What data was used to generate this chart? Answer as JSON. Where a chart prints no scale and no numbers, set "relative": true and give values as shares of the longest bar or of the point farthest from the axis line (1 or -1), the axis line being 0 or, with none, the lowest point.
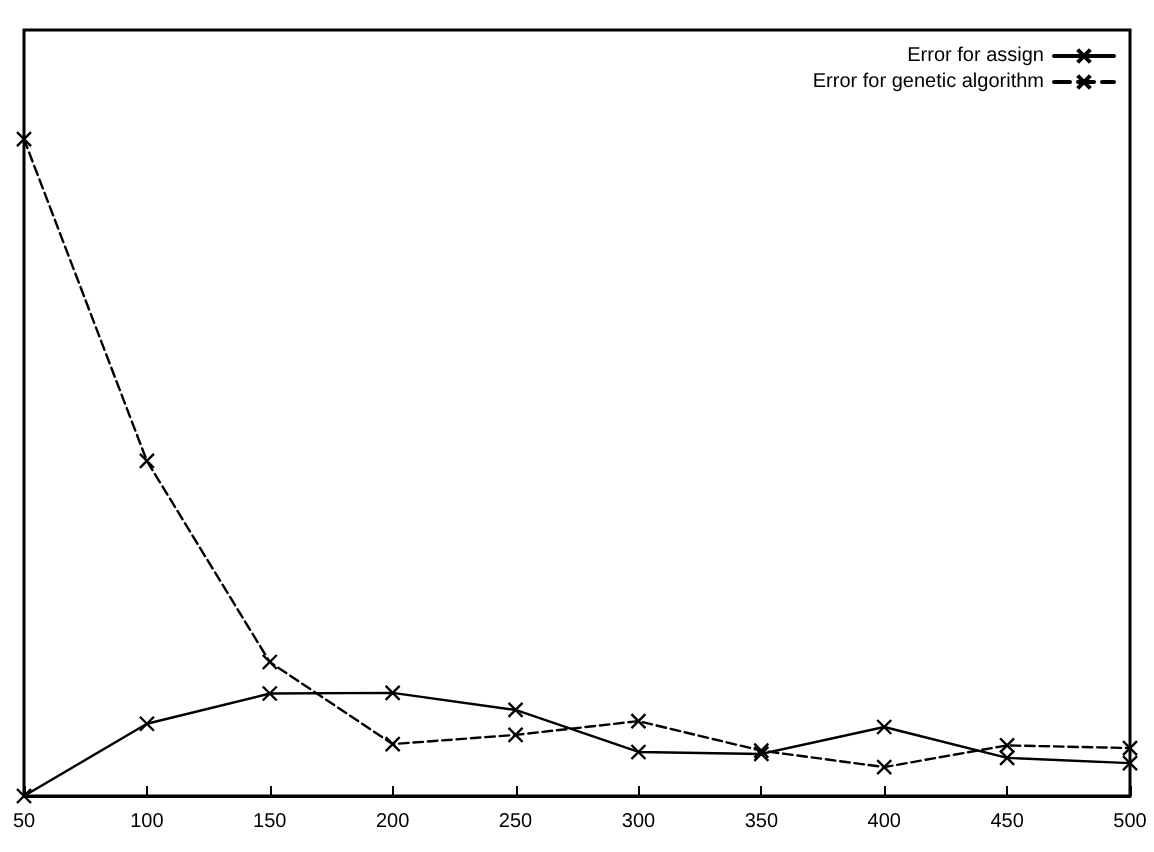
{
  "chart_data": {
    "type": "line",
    "relative": true,
    "x": [
      50,
      100,
      150,
      200,
      250,
      300,
      350,
      400,
      450,
      500
    ],
    "xlim": [
      50,
      500
    ],
    "xticks": [
      50,
      100,
      150,
      200,
      250,
      300,
      350,
      400,
      450,
      500
    ],
    "grid": false,
    "legend": "top right",
    "series": [
      {
        "name": "Error for assign",
        "color": "#000000",
        "line_style": "solid",
        "marker": "cross",
        "values": [
          0,
          0.11,
          0.156,
          0.157,
          0.131,
          0.067,
          0.064,
          0.105,
          0.058,
          0.05
        ]
      },
      {
        "name": "Error for genetic algorithm",
        "color": "#000000",
        "line_style": "dashed",
        "marker": "cross",
        "values": [
          1,
          0.51,
          0.204,
          0.079,
          0.093,
          0.114,
          0.069,
          0.044,
          0.077,
          0.073
        ]
      }
    ]
  }
}
